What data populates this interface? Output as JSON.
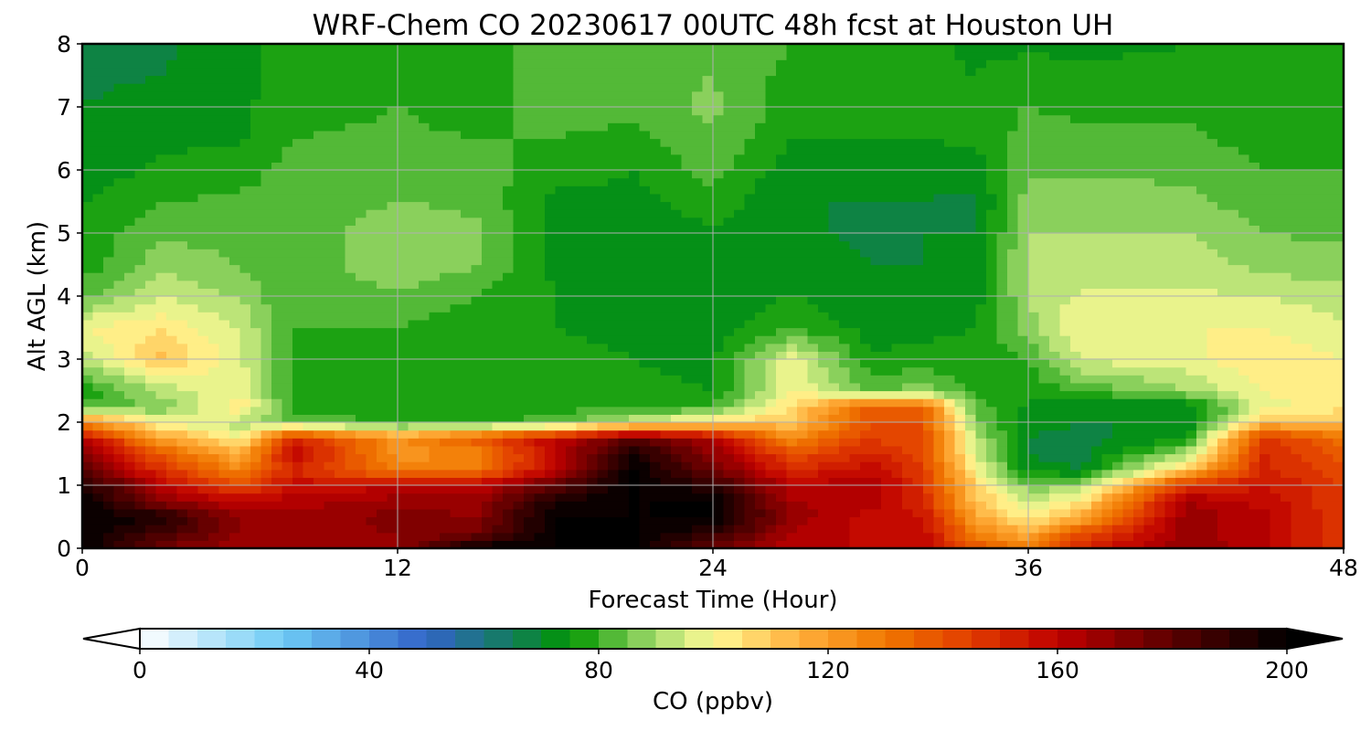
{
  "chart_data": {
    "type": "heatmap",
    "title": "WRF-Chem CO  20230617 00UTC 48h fcst at Houston UH",
    "xlabel": "Forecast Time (Hour)",
    "ylabel": "Alt AGL (km)",
    "xlim": [
      0,
      48
    ],
    "ylim": [
      0,
      8
    ],
    "xticks": [
      0,
      12,
      24,
      36,
      48
    ],
    "yticks": [
      0,
      1,
      2,
      3,
      4,
      5,
      6,
      7,
      8
    ],
    "grid": true,
    "colorbar": {
      "label": "CO  (ppbv)",
      "range": [
        0,
        200
      ],
      "ticks": [
        0,
        40,
        80,
        120,
        160,
        200
      ],
      "extend": "both",
      "colormap_stops": [
        {
          "v": 0,
          "color": "#ffffff"
        },
        {
          "v": 25,
          "color": "#6ecbf5"
        },
        {
          "v": 50,
          "color": "#3264c8"
        },
        {
          "v": 65,
          "color": "#127d5a"
        },
        {
          "v": 75,
          "color": "#009600"
        },
        {
          "v": 90,
          "color": "#a6dc6e"
        },
        {
          "v": 100,
          "color": "#fffa96"
        },
        {
          "v": 115,
          "color": "#ffaf3c"
        },
        {
          "v": 130,
          "color": "#f07800"
        },
        {
          "v": 145,
          "color": "#e13c00"
        },
        {
          "v": 160,
          "color": "#be0000"
        },
        {
          "v": 180,
          "color": "#5a0000"
        },
        {
          "v": 200,
          "color": "#000000"
        }
      ]
    },
    "y_levels_km": [
      0,
      0.25,
      0.5,
      0.75,
      1.0,
      1.25,
      1.5,
      1.75,
      2.0,
      2.25,
      2.5,
      3.0,
      3.5,
      4.0,
      4.5,
      5.0,
      5.5,
      6.0,
      6.5,
      7.0,
      7.5,
      8.0
    ],
    "series": [
      {
        "hour": 0,
        "values": [
          200,
          200,
          200,
          200,
          195,
          180,
          172,
          160,
          125,
          82,
          75,
          92,
          100,
          83,
          77,
          76,
          75,
          72,
          71,
          70,
          69,
          68
        ]
      },
      {
        "hour": 3,
        "values": [
          175,
          185,
          195,
          170,
          160,
          148,
          138,
          120,
          98,
          86,
          92,
          112,
          104,
          95,
          88,
          84,
          80,
          76,
          74,
          72,
          70,
          69
        ]
      },
      {
        "hour": 6,
        "values": [
          165,
          170,
          168,
          160,
          140,
          125,
          115,
          100,
          92,
          104,
          98,
          96,
          95,
          89,
          85,
          83,
          81,
          78,
          74,
          74,
          73,
          73
        ]
      },
      {
        "hour": 8,
        "values": [
          165,
          168,
          166,
          162,
          158,
          150,
          160,
          150,
          85,
          78,
          78,
          80,
          80,
          80,
          80,
          82,
          82,
          82,
          80,
          78,
          77,
          77
        ]
      },
      {
        "hour": 12,
        "values": [
          168,
          170,
          172,
          168,
          158,
          128,
          122,
          124,
          78,
          76,
          76,
          78,
          80,
          84,
          90,
          88,
          85,
          82,
          81,
          80,
          80,
          79
        ]
      },
      {
        "hour": 15,
        "values": [
          200,
          175,
          170,
          168,
          160,
          130,
          126,
          140,
          78,
          78,
          77,
          77,
          77,
          80,
          85,
          86,
          84,
          82,
          80,
          78,
          77,
          77
        ]
      },
      {
        "hour": 18,
        "values": [
          200,
          200,
          200,
          195,
          180,
          160,
          160,
          160,
          82,
          78,
          77,
          76,
          75,
          75,
          74,
          73,
          73,
          78,
          80,
          82,
          84,
          84
        ]
      },
      {
        "hour": 21,
        "values": [
          200,
          200,
          200,
          200,
          200,
          200,
          195,
          180,
          95,
          78,
          76,
          75,
          74,
          73,
          72,
          72,
          73,
          75,
          78,
          82,
          84,
          85
        ]
      },
      {
        "hour": 24,
        "values": [
          175,
          190,
          200,
          200,
          190,
          175,
          170,
          162,
          106,
          80,
          75,
          74,
          72,
          72,
          72,
          74,
          78,
          82,
          85,
          86,
          85,
          85
        ]
      },
      {
        "hour": 27,
        "values": [
          160,
          165,
          168,
          165,
          160,
          150,
          140,
          125,
          110,
          106,
          100,
          98,
          80,
          75,
          72,
          71,
          70,
          72,
          75,
          77,
          78,
          80
        ]
      },
      {
        "hour": 30,
        "values": [
          160,
          158,
          158,
          162,
          165,
          158,
          152,
          145,
          140,
          138,
          84,
          76,
          73,
          71,
          70,
          69,
          70,
          72,
          75,
          78,
          78,
          80
        ]
      },
      {
        "hour": 32,
        "values": [
          160,
          158,
          155,
          150,
          148,
          145,
          142,
          140,
          140,
          135,
          88,
          76,
          74,
          72,
          70,
          70,
          70,
          72,
          75,
          78,
          76,
          76
        ]
      },
      {
        "hour": 34,
        "values": [
          140,
          128,
          118,
          112,
          108,
          100,
          96,
          92,
          86,
          82,
          79,
          77,
          75,
          73,
          72,
          70,
          69,
          72,
          76,
          78,
          75,
          74
        ]
      },
      {
        "hour": 36,
        "values": [
          130,
          115,
          100,
          95,
          86,
          72,
          70,
          70,
          72,
          74,
          77,
          80,
          88,
          90,
          92,
          90,
          88,
          84,
          82,
          80,
          77,
          74
        ]
      },
      {
        "hour": 38,
        "values": [
          150,
          140,
          115,
          104,
          88,
          70,
          68,
          68,
          70,
          72,
          80,
          96,
          100,
          96,
          92,
          90,
          88,
          84,
          81,
          79,
          76,
          74
        ]
      },
      {
        "hour": 42,
        "values": [
          170,
          168,
          168,
          165,
          148,
          110,
          90,
          75,
          70,
          70,
          90,
          98,
          100,
          96,
          93,
          90,
          86,
          84,
          81,
          79,
          76,
          75
        ]
      },
      {
        "hour": 45,
        "values": [
          160,
          160,
          162,
          158,
          155,
          152,
          150,
          148,
          112,
          98,
          100,
          104,
          100,
          95,
          88,
          85,
          83,
          80,
          78,
          76,
          76,
          75
        ]
      },
      {
        "hour": 48,
        "values": [
          145,
          145,
          145,
          145,
          145,
          140,
          138,
          132,
          110,
          104,
          103,
          100,
          96,
          92,
          87,
          84,
          82,
          80,
          78,
          77,
          76,
          76
        ]
      }
    ]
  }
}
